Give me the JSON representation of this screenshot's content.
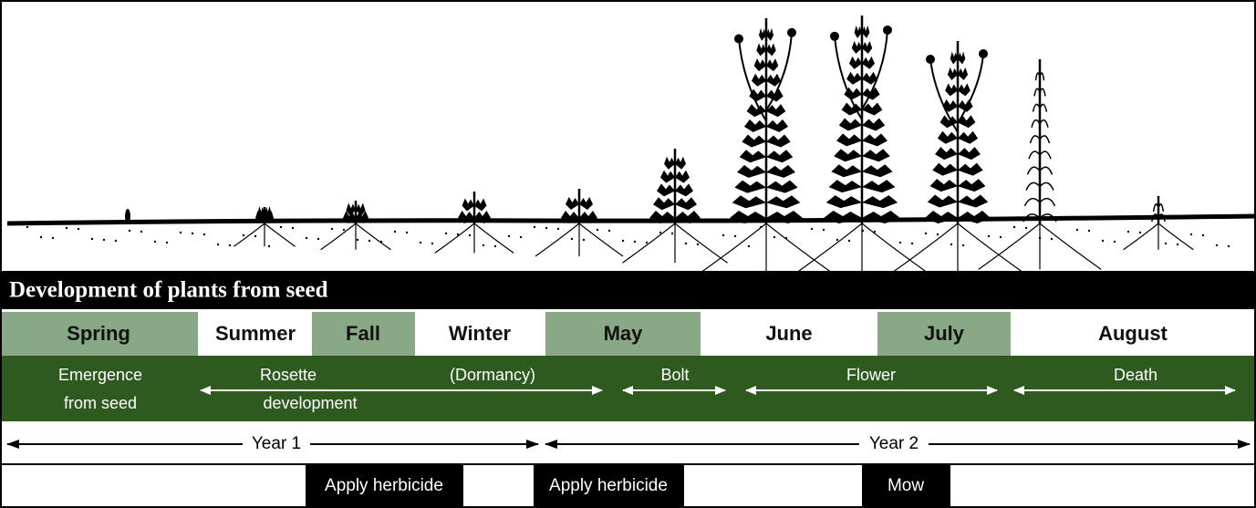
{
  "title": "Development of plants from seed",
  "seasons": [
    "Spring",
    "Summer",
    "Fall",
    "Winter",
    "May",
    "June",
    "July",
    "August"
  ],
  "stages": [
    {
      "label": [
        "Emergence",
        "from seed"
      ]
    },
    {
      "label": [
        "Rosette",
        "development"
      ]
    },
    {
      "label": [
        "(Dormancy)"
      ]
    },
    {
      "label": [
        "Bolt"
      ]
    },
    {
      "label": [
        "Flower"
      ]
    },
    {
      "label": [
        "Death"
      ]
    }
  ],
  "years": [
    "Year 1",
    "Year 2"
  ],
  "actions": [
    "Apply herbicide",
    "Apply herbicide",
    "Mow"
  ]
}
